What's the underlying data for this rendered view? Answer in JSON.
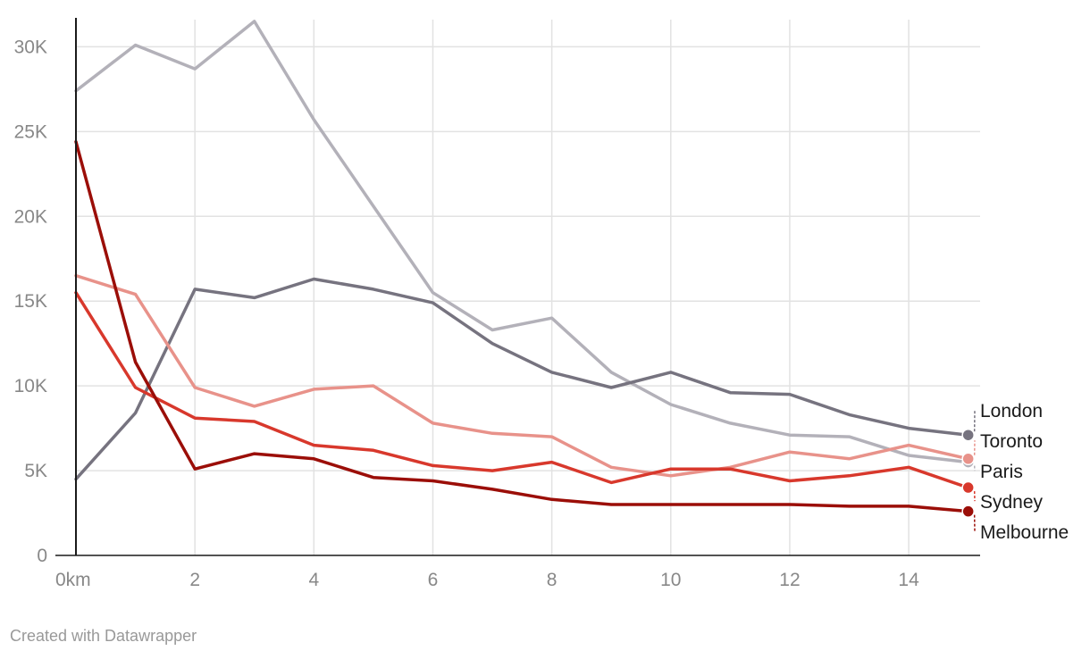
{
  "chart_data": {
    "type": "line",
    "x": [
      0,
      1,
      2,
      3,
      4,
      5,
      6,
      7,
      8,
      9,
      10,
      11,
      12,
      13,
      14,
      15
    ],
    "xlim": [
      0,
      15.2
    ],
    "ylim": [
      0,
      31600
    ],
    "x_ticks": [
      {
        "value": 0,
        "label": "0km"
      },
      {
        "value": 2,
        "label": "2"
      },
      {
        "value": 4,
        "label": "4"
      },
      {
        "value": 6,
        "label": "6"
      },
      {
        "value": 8,
        "label": "8"
      },
      {
        "value": 10,
        "label": "10"
      },
      {
        "value": 12,
        "label": "12"
      },
      {
        "value": 14,
        "label": "14"
      }
    ],
    "y_ticks": [
      {
        "value": 0,
        "label": "0"
      },
      {
        "value": 5000,
        "label": "5K"
      },
      {
        "value": 10000,
        "label": "10K"
      },
      {
        "value": 15000,
        "label": "15K"
      },
      {
        "value": 20000,
        "label": "20K"
      },
      {
        "value": 25000,
        "label": "25K"
      },
      {
        "value": 30000,
        "label": "30K"
      }
    ],
    "grid": true,
    "legend": "direct labels at line ends",
    "series": [
      {
        "name": "Paris",
        "color": "#b3b1b9",
        "values": [
          27400,
          30100,
          28700,
          31500,
          25700,
          20600,
          15500,
          13300,
          14000,
          10800,
          8900,
          7800,
          7100,
          7000,
          5900,
          5500
        ]
      },
      {
        "name": "London",
        "color": "#76737f",
        "values": [
          4500,
          8400,
          15700,
          15200,
          16300,
          15700,
          14900,
          12500,
          10800,
          9900,
          10800,
          9600,
          9500,
          8300,
          7500,
          7100
        ]
      },
      {
        "name": "Toronto",
        "color": "#e8928a",
        "values": [
          16500,
          15400,
          9900,
          8800,
          9800,
          10000,
          7800,
          7200,
          7000,
          5200,
          4700,
          5200,
          6100,
          5700,
          6500,
          5700
        ]
      },
      {
        "name": "Sydney",
        "color": "#d8382c",
        "values": [
          15500,
          9900,
          8100,
          7900,
          6500,
          6200,
          5300,
          5000,
          5500,
          4300,
          5100,
          5100,
          4400,
          4700,
          5200,
          4000
        ]
      },
      {
        "name": "Melbourne",
        "color": "#9b0e08",
        "values": [
          24400,
          11400,
          5100,
          6000,
          5700,
          4600,
          4400,
          3900,
          3300,
          3000,
          3000,
          3000,
          3000,
          2900,
          2900,
          2600
        ]
      }
    ]
  },
  "credit": "Created with Datawrapper"
}
